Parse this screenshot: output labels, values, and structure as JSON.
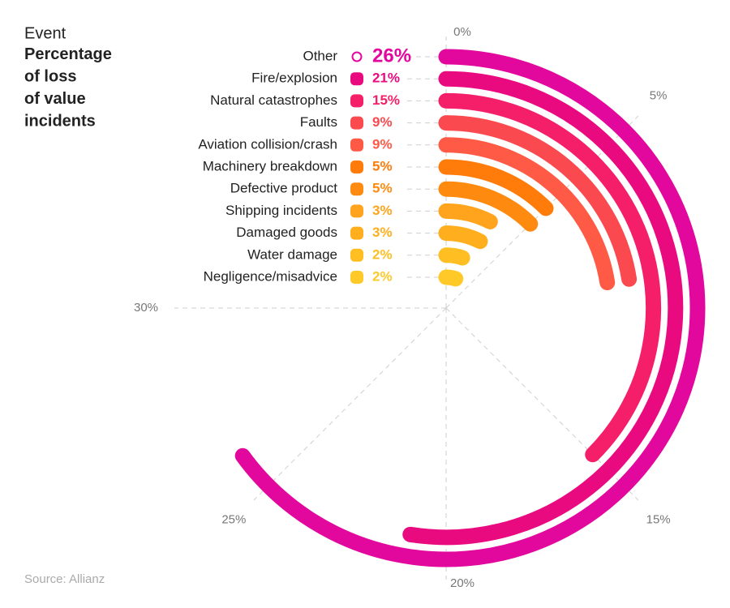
{
  "chart_data": {
    "type": "radial-bar",
    "x_label": "Event",
    "title": "Percentage of loss of value incidents",
    "source": "Source: Allianz",
    "categories": [
      "Other",
      "Fire/explosion",
      "Natural catastrophes",
      "Faults",
      "Aviation collision/crash",
      "Machinery breakdown",
      "Defective product",
      "Shipping incidents",
      "Damaged goods",
      "Water damage",
      "Negligence/misadvice"
    ],
    "values": [
      26,
      21,
      15,
      9,
      9,
      5,
      5,
      3,
      3,
      2,
      2
    ],
    "value_labels": [
      "26%",
      "21%",
      "15%",
      "9%",
      "9%",
      "5%",
      "5%",
      "3%",
      "3%",
      "2%",
      "2%"
    ],
    "colors": [
      "#e3089d",
      "#ea0a80",
      "#f41f68",
      "#fb4a4f",
      "#ff5a45",
      "#ff7b0a",
      "#ff8a10",
      "#ffa41c",
      "#ffae1e",
      "#ffbe22",
      "#ffc928"
    ],
    "ylim": [
      0,
      40
    ],
    "yticks": [
      {
        "value": 0,
        "label": "0%"
      },
      {
        "value": 5,
        "label": "5%"
      },
      {
        "value": 15,
        "label": "15%"
      },
      {
        "value": 20,
        "label": "20%"
      },
      {
        "value": 25,
        "label": "25%"
      },
      {
        "value": 30,
        "label": "30%"
      }
    ],
    "grid": true
  }
}
